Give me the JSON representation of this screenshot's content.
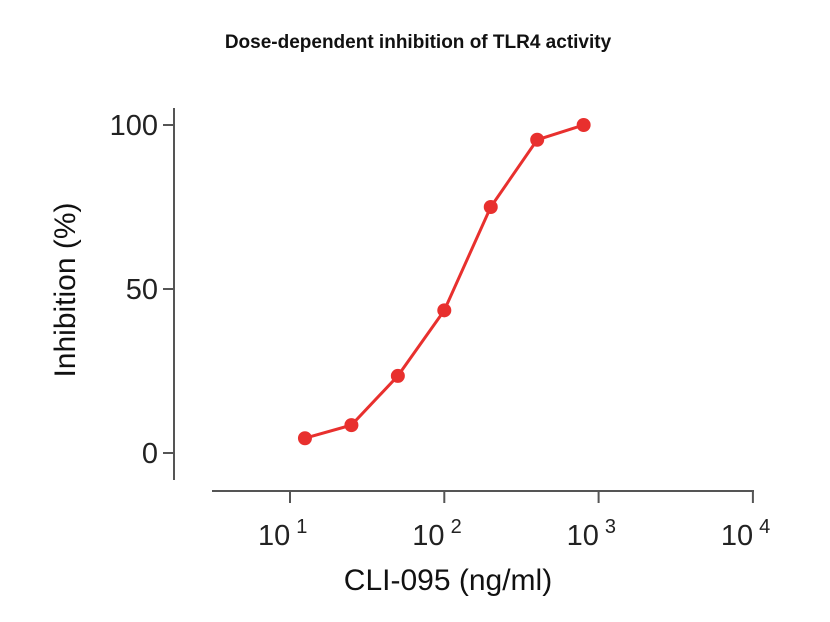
{
  "chart_data": {
    "type": "line",
    "title": "Dose-dependent inhibition of TLR4 activity",
    "xlabel": "CLI-095 (ng/ml)",
    "ylabel": "Inhibition (%)",
    "x_scale": "log",
    "xlim": [
      10,
      10000
    ],
    "ylim": [
      0,
      100
    ],
    "x_ticks": [
      {
        "base": "10",
        "exp": "1"
      },
      {
        "base": "10",
        "exp": "2"
      },
      {
        "base": "10",
        "exp": "3"
      },
      {
        "base": "10",
        "exp": "4"
      }
    ],
    "y_ticks": [
      "0",
      "50",
      "100"
    ],
    "grid": false,
    "color": "#e8302e",
    "series": [
      {
        "x": [
          12.5,
          25,
          50,
          100,
          200,
          400,
          800
        ],
        "y": [
          4.5,
          8.5,
          23.5,
          43.5,
          75,
          95.5,
          100
        ]
      }
    ]
  }
}
